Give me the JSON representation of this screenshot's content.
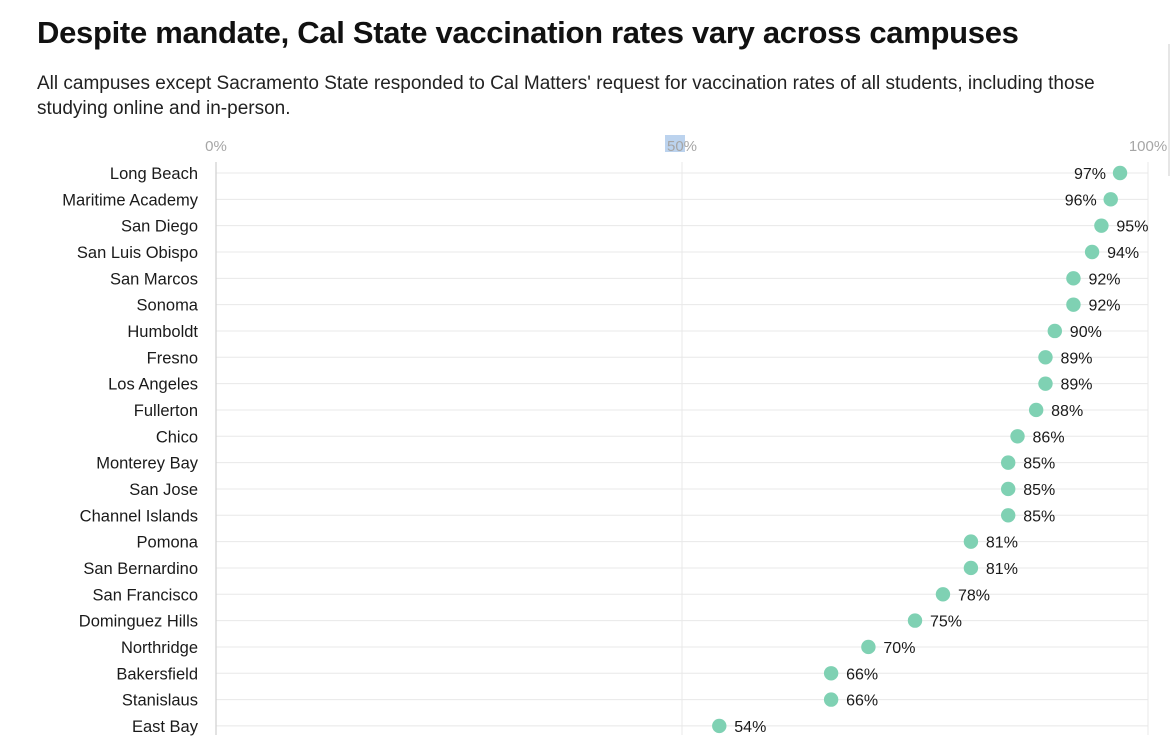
{
  "title": "Despite mandate, Cal State vaccination rates vary across campuses",
  "subtitle": "All campuses except Sacramento State responded to Cal Matters' request for vaccination rates of all students, including those studying online and in-person.",
  "colors": {
    "dot": "#7fd1b3",
    "highlight": "#bcd3ee",
    "grid": "#e8e8e8",
    "axis_label": "#a6a6a6"
  },
  "chart_data": {
    "type": "scatter",
    "orientation": "horizontal-dot",
    "xlim": [
      0,
      100
    ],
    "x_ticks": [
      {
        "value": 0,
        "label": "0%"
      },
      {
        "value": 50,
        "label": "50%"
      },
      {
        "value": 100,
        "label": "100%"
      }
    ],
    "x_axis_position": "top",
    "grid": true,
    "categories": [
      "Long Beach",
      "Maritime Academy",
      "San Diego",
      "San Luis Obispo",
      "San Marcos",
      "Sonoma",
      "Humboldt",
      "Fresno",
      "Los Angeles",
      "Fullerton",
      "Chico",
      "Monterey Bay",
      "San Jose",
      "Channel Islands",
      "Pomona",
      "San Bernardino",
      "San Francisco",
      "Dominguez Hills",
      "Northridge",
      "Bakersfield",
      "Stanislaus",
      "East Bay"
    ],
    "values": [
      97,
      96,
      95,
      94,
      92,
      92,
      90,
      89,
      89,
      88,
      86,
      85,
      85,
      85,
      81,
      81,
      78,
      75,
      70,
      66,
      66,
      54
    ],
    "labels": [
      "97%",
      "96%",
      "95%",
      "94%",
      "92%",
      "92%",
      "90%",
      "89%",
      "89%",
      "88%",
      "86%",
      "85%",
      "85%",
      "85%",
      "81%",
      "81%",
      "78%",
      "75%",
      "70%",
      "66%",
      "66%",
      "54%"
    ],
    "label_side": [
      "left",
      "left",
      "right",
      "right",
      "right",
      "right",
      "right",
      "right",
      "right",
      "right",
      "right",
      "right",
      "right",
      "right",
      "right",
      "right",
      "right",
      "right",
      "right",
      "right",
      "right",
      "right"
    ]
  }
}
